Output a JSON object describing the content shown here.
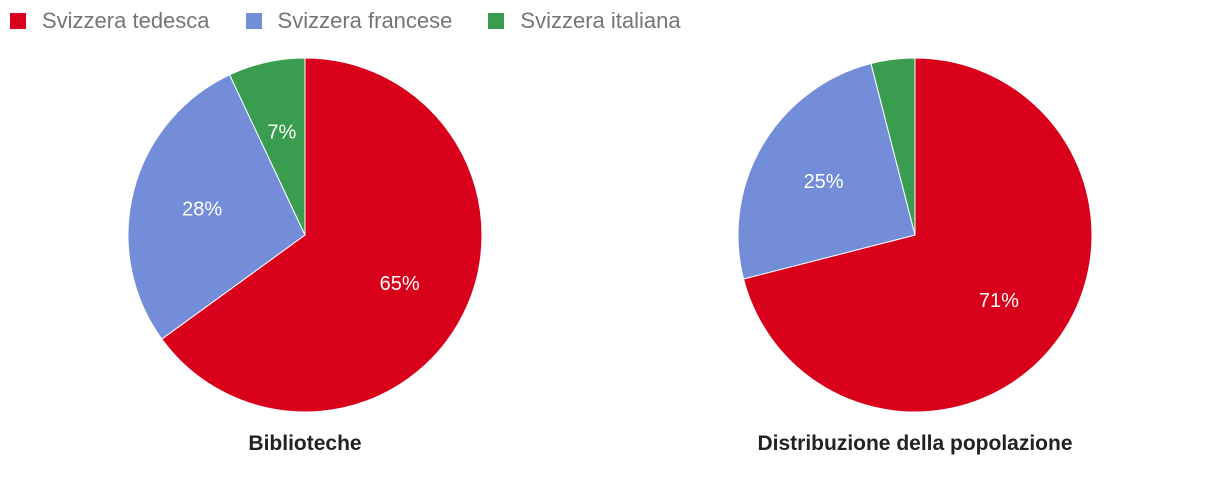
{
  "legend": [
    {
      "label": "Svizzera tedesca",
      "color": "#d9001b"
    },
    {
      "label": "Svizzera francese",
      "color": "#738dd9"
    },
    {
      "label": "Svizzera italiana",
      "color": "#3a9c4f"
    }
  ],
  "chart_data": [
    {
      "type": "pie",
      "title": "Biblioteche",
      "categories": [
        "Svizzera tedesca",
        "Svizzera francese",
        "Svizzera italiana"
      ],
      "values": [
        65,
        28,
        7
      ],
      "labels": [
        "65%",
        "28%",
        "7%"
      ],
      "colors": [
        "#d9001b",
        "#738dd9",
        "#3a9c4f"
      ]
    },
    {
      "type": "pie",
      "title": "Distribuzione della popolazione",
      "categories": [
        "Svizzera tedesca",
        "Svizzera francese",
        "Svizzera italiana"
      ],
      "values": [
        71,
        25,
        4
      ],
      "labels": [
        "71%",
        "25%",
        ""
      ],
      "colors": [
        "#d9001b",
        "#738dd9",
        "#3a9c4f"
      ]
    }
  ]
}
